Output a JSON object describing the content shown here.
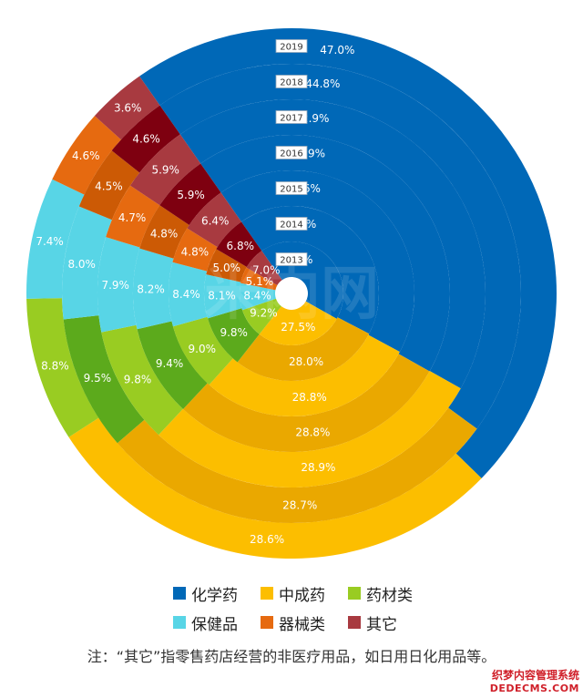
{
  "chart_data": {
    "type": "pie",
    "subtype": "multi-ring (concentric donut)",
    "rings_inner_to_outer": [
      "2013",
      "2014",
      "2015",
      "2016",
      "2017",
      "2018",
      "2019"
    ],
    "categories": [
      "化学药",
      "中成药",
      "药材类",
      "保健品",
      "器械类",
      "其它"
    ],
    "series": [
      {
        "name": "2013",
        "values": [
          42.9,
          27.5,
          9.2,
          8.4,
          5.1,
          7.0
        ]
      },
      {
        "name": "2014",
        "values": [
          42.4,
          28.0,
          9.8,
          8.1,
          5.0,
          6.8
        ]
      },
      {
        "name": "2015",
        "values": [
          42.6,
          28.8,
          9.0,
          8.4,
          4.8,
          6.4
        ]
      },
      {
        "name": "2016",
        "values": [
          42.9,
          28.8,
          9.4,
          8.2,
          4.8,
          5.9
        ]
      },
      {
        "name": "2017",
        "values": [
          42.9,
          28.9,
          9.8,
          7.9,
          4.7,
          5.9
        ]
      },
      {
        "name": "2018",
        "values": [
          44.8,
          28.7,
          9.5,
          8.0,
          4.5,
          4.6
        ]
      },
      {
        "name": "2019",
        "values": [
          47.0,
          28.6,
          8.8,
          7.4,
          4.6,
          3.6
        ]
      }
    ],
    "value_unit": "%",
    "colors": {
      "化学药": [
        "#0068b7",
        "#0068b7"
      ],
      "中成药": [
        "#fcbe00",
        "#eaa800"
      ],
      "药材类": [
        "#99cc22",
        "#5caa1c"
      ],
      "保健品": [
        "#58d5e6",
        "#58d5e6"
      ],
      "器械类": [
        "#e66a10",
        "#cc5a05"
      ],
      "其它": [
        "#a83a40",
        "#7e0010"
      ]
    },
    "legend_placement": "bottom",
    "start_angle_deg": -35,
    "direction": "clockwise"
  },
  "legend": {
    "items": [
      {
        "label": "化学药",
        "color": "#0068b7"
      },
      {
        "label": "中成药",
        "color": "#fcbe00"
      },
      {
        "label": "药材类",
        "color": "#99cc22"
      },
      {
        "label": "保健品",
        "color": "#58d5e6"
      },
      {
        "label": "器械类",
        "color": "#e66a10"
      },
      {
        "label": "其它",
        "color": "#a83a40"
      }
    ]
  },
  "note": "注：“其它”指零售药店经营的非医疗用品，如日用日化用品等。",
  "watermark": {
    "center_text": "米内网",
    "site_line1": "织梦内容管理系统",
    "site_line2": "DEDECMS.COM"
  }
}
